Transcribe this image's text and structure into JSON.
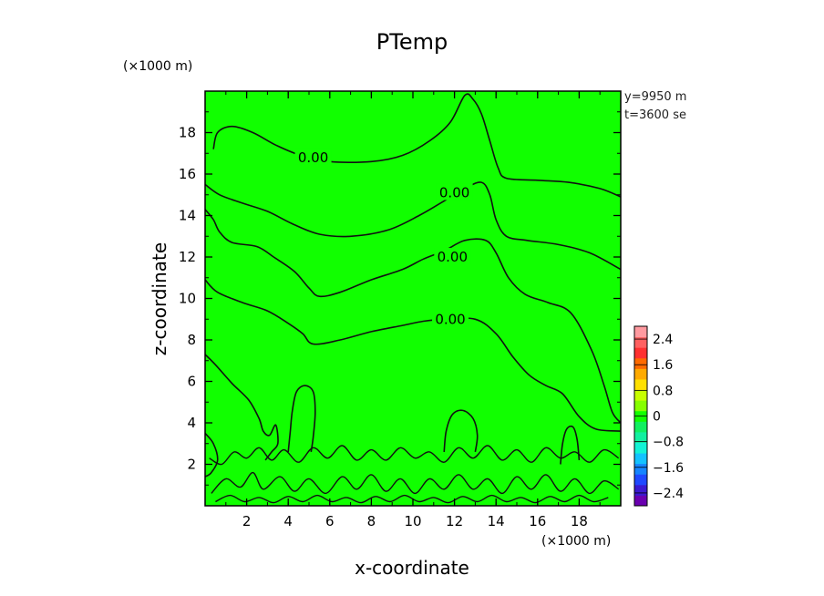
{
  "chart_data": {
    "type": "heatmap",
    "title": "PTemp",
    "xlabel": "x-coordinate",
    "ylabel": "z-coordinate",
    "x_unit": "(×1000 m)",
    "y_unit": "(×1000 m)",
    "xlim": [
      0,
      20
    ],
    "ylim": [
      0,
      20
    ],
    "x_ticks": [
      2,
      4,
      6,
      8,
      10,
      12,
      14,
      16,
      18
    ],
    "y_ticks": [
      2,
      4,
      6,
      8,
      10,
      12,
      14,
      16,
      18
    ],
    "annotations": [
      "y=9950 m",
      "t=3600 se"
    ],
    "fill_color": "#11ff00",
    "contour_lines": [
      {
        "label": "0.00",
        "label_at": [
          5.2,
          16.8
        ],
        "points": [
          [
            0.4,
            17.2
          ],
          [
            0.6,
            18.0
          ],
          [
            1.3,
            18.3
          ],
          [
            2.3,
            18.0
          ],
          [
            3.4,
            17.4
          ],
          [
            4.6,
            16.9
          ],
          [
            6.0,
            16.6
          ],
          [
            8.0,
            16.6
          ],
          [
            9.5,
            16.9
          ],
          [
            10.8,
            17.6
          ],
          [
            11.8,
            18.5
          ],
          [
            12.5,
            19.8
          ],
          [
            12.9,
            19.6
          ],
          [
            13.3,
            18.9
          ],
          [
            13.7,
            17.6
          ],
          [
            14.1,
            16.3
          ],
          [
            14.5,
            15.8
          ],
          [
            16.0,
            15.7
          ],
          [
            17.5,
            15.6
          ],
          [
            19.0,
            15.3
          ],
          [
            20.0,
            14.9
          ]
        ]
      },
      {
        "label": "0.00",
        "label_at": [
          12.0,
          15.1
        ],
        "points": [
          [
            0.0,
            15.5
          ],
          [
            0.7,
            15.0
          ],
          [
            1.8,
            14.6
          ],
          [
            3.0,
            14.2
          ],
          [
            4.2,
            13.6
          ],
          [
            5.5,
            13.1
          ],
          [
            7.0,
            13.0
          ],
          [
            8.8,
            13.3
          ],
          [
            10.3,
            14.0
          ],
          [
            11.5,
            14.7
          ],
          [
            12.5,
            15.3
          ],
          [
            13.3,
            15.6
          ],
          [
            13.7,
            15.0
          ],
          [
            14.0,
            13.8
          ],
          [
            14.5,
            13.0
          ],
          [
            15.5,
            12.8
          ],
          [
            17.0,
            12.6
          ],
          [
            18.5,
            12.2
          ],
          [
            20.0,
            11.4
          ]
        ]
      },
      {
        "label": "0.00",
        "label_at": [
          11.9,
          12.0
        ],
        "points": [
          [
            0.0,
            14.3
          ],
          [
            0.4,
            13.8
          ],
          [
            0.7,
            13.2
          ],
          [
            1.3,
            12.7
          ],
          [
            2.5,
            12.5
          ],
          [
            3.3,
            12.0
          ],
          [
            4.3,
            11.3
          ],
          [
            5.0,
            10.5
          ],
          [
            5.5,
            10.1
          ],
          [
            6.5,
            10.3
          ],
          [
            8.0,
            10.9
          ],
          [
            9.5,
            11.4
          ],
          [
            10.5,
            11.9
          ],
          [
            11.5,
            12.3
          ],
          [
            12.5,
            12.8
          ],
          [
            13.5,
            12.8
          ],
          [
            14.0,
            12.2
          ],
          [
            14.6,
            11.0
          ],
          [
            15.4,
            10.2
          ],
          [
            16.5,
            9.8
          ],
          [
            17.6,
            9.3
          ],
          [
            18.6,
            7.5
          ],
          [
            19.2,
            5.8
          ],
          [
            19.6,
            4.5
          ],
          [
            20.0,
            4.0
          ]
        ]
      },
      {
        "label": "0.00",
        "label_at": [
          11.8,
          9.0
        ],
        "points": [
          [
            0.0,
            10.9
          ],
          [
            0.6,
            10.3
          ],
          [
            1.8,
            9.8
          ],
          [
            3.0,
            9.4
          ],
          [
            4.0,
            8.8
          ],
          [
            4.7,
            8.3
          ],
          [
            5.2,
            7.8
          ],
          [
            6.5,
            8.0
          ],
          [
            8.0,
            8.4
          ],
          [
            9.5,
            8.7
          ],
          [
            10.5,
            8.9
          ],
          [
            11.5,
            9.0
          ],
          [
            13.0,
            9.0
          ],
          [
            14.0,
            8.3
          ],
          [
            14.8,
            7.2
          ],
          [
            15.6,
            6.3
          ],
          [
            16.4,
            5.8
          ],
          [
            17.2,
            5.4
          ],
          [
            18.0,
            4.3
          ],
          [
            18.8,
            3.7
          ],
          [
            20.0,
            3.6
          ]
        ]
      },
      {
        "label": "",
        "label_at": [
          0,
          0
        ],
        "points": [
          [
            0.0,
            7.3
          ],
          [
            0.5,
            6.8
          ],
          [
            1.3,
            5.9
          ],
          [
            2.1,
            5.1
          ],
          [
            2.6,
            4.2
          ],
          [
            2.8,
            3.6
          ],
          [
            3.1,
            3.4
          ],
          [
            3.4,
            3.9
          ],
          [
            3.5,
            3.0
          ],
          [
            3.2,
            2.6
          ],
          [
            2.9,
            2.2
          ]
        ]
      },
      {
        "label": "",
        "label_at": [
          0,
          0
        ],
        "points": [
          [
            4.0,
            2.6
          ],
          [
            4.1,
            3.6
          ],
          [
            4.2,
            4.6
          ],
          [
            4.4,
            5.5
          ],
          [
            4.8,
            5.8
          ],
          [
            5.2,
            5.5
          ],
          [
            5.3,
            4.5
          ],
          [
            5.2,
            3.3
          ],
          [
            5.1,
            2.6
          ]
        ]
      },
      {
        "label": "",
        "label_at": [
          0,
          0
        ],
        "points": [
          [
            11.5,
            2.6
          ],
          [
            11.6,
            3.6
          ],
          [
            11.9,
            4.4
          ],
          [
            12.4,
            4.6
          ],
          [
            12.9,
            4.2
          ],
          [
            13.1,
            3.4
          ],
          [
            13.0,
            2.6
          ]
        ]
      },
      {
        "label": "",
        "label_at": [
          0,
          0
        ],
        "points": [
          [
            17.1,
            2.0
          ],
          [
            17.2,
            3.0
          ],
          [
            17.4,
            3.7
          ],
          [
            17.7,
            3.8
          ],
          [
            17.9,
            3.2
          ],
          [
            18.0,
            2.2
          ]
        ]
      },
      {
        "label": "",
        "label_at": [
          0,
          0
        ],
        "points": [
          [
            0.0,
            3.5
          ],
          [
            0.4,
            3.0
          ],
          [
            0.6,
            2.2
          ],
          [
            0.3,
            1.6
          ],
          [
            0.0,
            1.4
          ]
        ]
      }
    ],
    "noise_contours": [
      {
        "points": [
          [
            0.3,
            0.6
          ],
          [
            1.0,
            1.3
          ],
          [
            1.7,
            0.9
          ],
          [
            2.3,
            1.6
          ],
          [
            2.8,
            0.8
          ],
          [
            3.6,
            1.4
          ],
          [
            4.3,
            0.7
          ],
          [
            5.0,
            1.3
          ],
          [
            5.8,
            0.6
          ],
          [
            6.6,
            1.4
          ],
          [
            7.3,
            0.8
          ],
          [
            8.0,
            1.5
          ],
          [
            8.7,
            0.7
          ],
          [
            9.4,
            1.3
          ],
          [
            10.1,
            0.6
          ],
          [
            10.8,
            1.3
          ],
          [
            11.5,
            0.8
          ],
          [
            12.2,
            1.5
          ],
          [
            12.9,
            0.8
          ],
          [
            13.6,
            1.3
          ],
          [
            14.3,
            0.6
          ],
          [
            15.0,
            1.4
          ],
          [
            15.7,
            0.8
          ],
          [
            16.4,
            1.5
          ],
          [
            17.1,
            0.7
          ],
          [
            17.8,
            1.3
          ],
          [
            18.5,
            0.6
          ],
          [
            19.2,
            1.2
          ],
          [
            19.9,
            0.8
          ]
        ]
      },
      {
        "points": [
          [
            0.2,
            2.3
          ],
          [
            0.8,
            2.0
          ],
          [
            1.4,
            2.6
          ],
          [
            2.0,
            2.3
          ],
          [
            2.6,
            2.8
          ],
          [
            3.2,
            2.2
          ],
          [
            3.8,
            2.7
          ],
          [
            4.5,
            2.1
          ],
          [
            5.2,
            2.8
          ],
          [
            5.9,
            2.3
          ],
          [
            6.6,
            2.9
          ],
          [
            7.3,
            2.2
          ],
          [
            8.0,
            2.7
          ],
          [
            8.7,
            2.2
          ],
          [
            9.4,
            2.8
          ],
          [
            10.1,
            2.3
          ],
          [
            10.8,
            2.6
          ],
          [
            11.5,
            2.1
          ],
          [
            12.2,
            2.8
          ],
          [
            12.9,
            2.3
          ],
          [
            13.6,
            2.9
          ],
          [
            14.3,
            2.2
          ],
          [
            15.0,
            2.7
          ],
          [
            15.7,
            2.1
          ],
          [
            16.4,
            2.8
          ],
          [
            17.1,
            2.3
          ],
          [
            17.8,
            2.6
          ],
          [
            18.5,
            2.1
          ],
          [
            19.2,
            2.7
          ],
          [
            19.9,
            2.3
          ]
        ]
      },
      {
        "points": [
          [
            0.5,
            0.2
          ],
          [
            1.2,
            0.5
          ],
          [
            1.9,
            0.2
          ],
          [
            2.6,
            0.4
          ],
          [
            3.3,
            0.15
          ],
          [
            4.0,
            0.45
          ],
          [
            4.7,
            0.2
          ],
          [
            5.4,
            0.5
          ],
          [
            6.1,
            0.2
          ],
          [
            6.8,
            0.4
          ],
          [
            7.5,
            0.15
          ],
          [
            8.2,
            0.45
          ],
          [
            8.9,
            0.2
          ],
          [
            9.6,
            0.5
          ],
          [
            10.3,
            0.2
          ],
          [
            11.0,
            0.4
          ],
          [
            11.7,
            0.15
          ],
          [
            12.4,
            0.45
          ],
          [
            13.1,
            0.2
          ],
          [
            13.8,
            0.5
          ],
          [
            14.5,
            0.2
          ],
          [
            15.2,
            0.4
          ],
          [
            15.9,
            0.15
          ],
          [
            16.6,
            0.45
          ],
          [
            17.3,
            0.2
          ],
          [
            18.0,
            0.5
          ],
          [
            18.7,
            0.2
          ],
          [
            19.4,
            0.4
          ]
        ]
      }
    ],
    "colorbar": {
      "tick_labels": [
        "2.4",
        "1.6",
        "0.8",
        "0",
        "−0.8",
        "−1.6",
        "−2.4"
      ],
      "tick_values": [
        2.4,
        1.6,
        0.8,
        0,
        -0.8,
        -1.6,
        -2.4
      ],
      "range": [
        -2.8,
        2.8
      ],
      "colors": [
        "#6a00b0",
        "#3a1ad0",
        "#1f49ff",
        "#1585ff",
        "#13c2ff",
        "#13f2d6",
        "#12f0a0",
        "#11f060",
        "#11ff00",
        "#86ff00",
        "#c8ff00",
        "#ffe000",
        "#ffaa00",
        "#ff6a00",
        "#ff3030",
        "#ff6060",
        "#ff9aa0"
      ]
    }
  }
}
